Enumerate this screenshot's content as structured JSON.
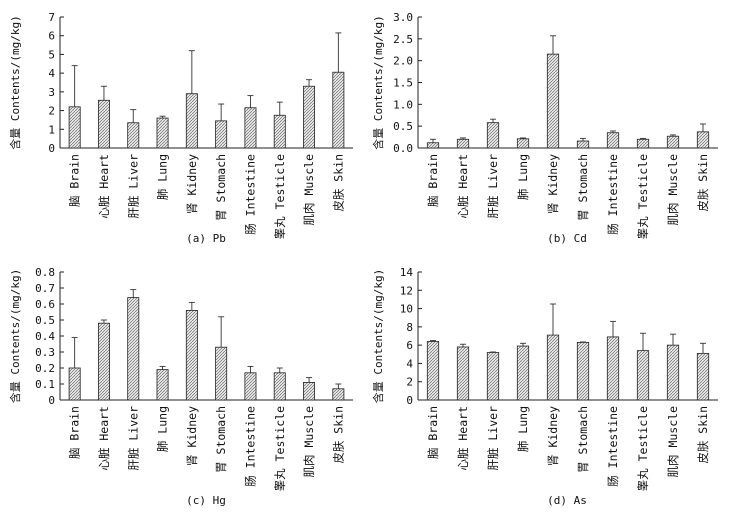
{
  "chart_data": [
    {
      "id": "pb",
      "type": "bar",
      "caption": "(a) Pb",
      "ylabel": "含量 Contents/(mg/kg)",
      "ylim": [
        0,
        7
      ],
      "yticks": [
        "0",
        "1",
        "2",
        "3",
        "4",
        "5",
        "6",
        "7"
      ],
      "categories": [
        "脑 Brain",
        "心脏 Heart",
        "肝脏 Liver",
        "肺 Lung",
        "肾 Kidney",
        "胃 Stomach",
        "肠 Intestine",
        "睾丸 Testicle",
        "肌肉 Muscle",
        "皮肤 Skin"
      ],
      "values": [
        2.2,
        2.55,
        1.35,
        1.6,
        2.9,
        1.45,
        2.15,
        1.75,
        3.3,
        4.05
      ],
      "errors": [
        2.2,
        0.75,
        0.7,
        0.1,
        2.3,
        0.9,
        0.65,
        0.7,
        0.35,
        2.1
      ]
    },
    {
      "id": "cd",
      "type": "bar",
      "caption": "(b) Cd",
      "ylabel": "含量 Contents/(mg/kg)",
      "ylim": [
        0,
        3
      ],
      "yticks": [
        "0.0",
        "0.5",
        "1.0",
        "1.5",
        "2.0",
        "2.5",
        "3.0"
      ],
      "categories": [
        "脑 Brain",
        "心脏 Heart",
        "肝脏 Liver",
        "肺 Lung",
        "肾 Kidney",
        "胃 Stomach",
        "肠 Intestine",
        "睾丸 Testicle",
        "肌肉 Muscle",
        "皮肤 Skin"
      ],
      "values": [
        0.12,
        0.2,
        0.58,
        0.21,
        2.15,
        0.16,
        0.35,
        0.2,
        0.27,
        0.37
      ],
      "errors": [
        0.08,
        0.03,
        0.08,
        0.02,
        0.42,
        0.06,
        0.04,
        0.02,
        0.03,
        0.18
      ]
    },
    {
      "id": "hg",
      "type": "bar",
      "caption": "(c) Hg",
      "ylabel": "含量 Contents/(mg/kg)",
      "ylim": [
        0,
        0.8
      ],
      "yticks": [
        "0",
        "0.1",
        "0.2",
        "0.3",
        "0.4",
        "0.5",
        "0.6",
        "0.7",
        "0.8"
      ],
      "categories": [
        "脑 Brain",
        "心脏 Heart",
        "肝脏 Liver",
        "肺 Lung",
        "肾 Kidney",
        "胃 Stomach",
        "肠 Intestine",
        "睾丸 Testicle",
        "肌肉 Muscle",
        "皮肤 Skin"
      ],
      "values": [
        0.2,
        0.48,
        0.64,
        0.19,
        0.56,
        0.33,
        0.17,
        0.17,
        0.11,
        0.07
      ],
      "errors": [
        0.19,
        0.02,
        0.05,
        0.02,
        0.05,
        0.19,
        0.04,
        0.03,
        0.03,
        0.03
      ]
    },
    {
      "id": "as",
      "type": "bar",
      "caption": "(d) As",
      "ylabel": "含量 Contents/(mg/kg)",
      "ylim": [
        0,
        14
      ],
      "yticks": [
        "0",
        "2",
        "4",
        "6",
        "8",
        "10",
        "12",
        "14"
      ],
      "categories": [
        "脑 Brain",
        "心脏 Heart",
        "肝脏 Liver",
        "肺 Lung",
        "肾 Kidney",
        "胃 Stomach",
        "肠 Intestine",
        "睾丸 Testicle",
        "肌肉 Muscle",
        "皮肤 Skin"
      ],
      "values": [
        6.4,
        5.8,
        5.2,
        5.9,
        7.1,
        6.3,
        6.9,
        5.4,
        6.0,
        5.1
      ],
      "errors": [
        0.1,
        0.3,
        0.05,
        0.3,
        3.4,
        0.05,
        1.7,
        1.9,
        1.2,
        1.1
      ]
    }
  ]
}
